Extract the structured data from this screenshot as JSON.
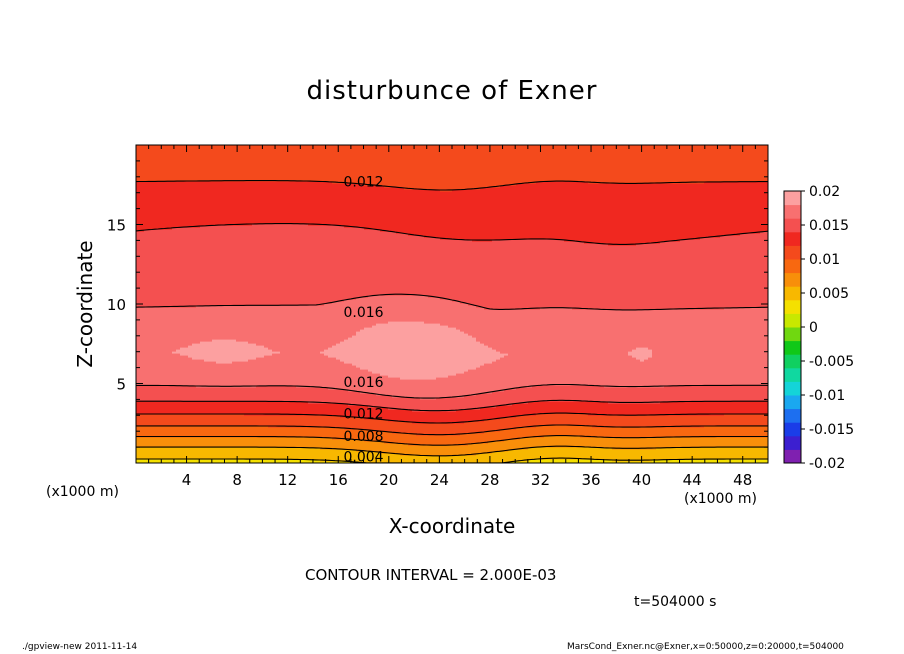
{
  "chart_data": {
    "type": "contour",
    "title": "disturbunce of Exner",
    "xlabel": "X-coordinate",
    "ylabel": "Z-coordinate",
    "x_unit_label": "(x1000 m)",
    "xlim": [
      0,
      50
    ],
    "ylim": [
      0,
      20
    ],
    "x_ticks": [
      4,
      8,
      12,
      16,
      20,
      24,
      28,
      32,
      36,
      40,
      44,
      48
    ],
    "y_ticks": [
      5,
      10,
      15
    ],
    "contour_interval_text": "CONTOUR INTERVAL = 2.000E-03",
    "time_label": "t=504000 s",
    "contour_labels": [
      {
        "text": "0.012",
        "x": 18,
        "z": 17.7
      },
      {
        "text": "0.016",
        "x": 18,
        "z": 9.5
      },
      {
        "text": "0.016",
        "x": 18,
        "z": 5.1
      },
      {
        "text": "0.012",
        "x": 18,
        "z": 3.1
      },
      {
        "text": "0.008",
        "x": 18,
        "z": 1.7
      },
      {
        "text": "0.004",
        "x": 18,
        "z": 0.4
      }
    ],
    "colorbar": {
      "range": [
        -0.02,
        0.02
      ],
      "tick_labels": [
        "0.02",
        "0.015",
        "0.01",
        "0.005",
        "0",
        "-0.005",
        "-0.01",
        "-0.015",
        "-0.02"
      ],
      "colors": [
        "#7f20b0",
        "#3c1fd0",
        "#1a3de8",
        "#1d6ff0",
        "#1aa8f0",
        "#14d4d8",
        "#10d8a0",
        "#10d060",
        "#10c818",
        "#70d810",
        "#c8e800",
        "#f4e000",
        "#f8b800",
        "#f88f0a",
        "#f86810",
        "#f44a1c",
        "#f02820",
        "#f45050",
        "#f87070",
        "#fca0a0"
      ],
      "colors_top_index": 19
    },
    "vertical_profile": [
      {
        "z": 0,
        "value": 0.0035
      },
      {
        "z": 0.5,
        "value": 0.0045
      },
      {
        "z": 1.0,
        "value": 0.006
      },
      {
        "z": 1.5,
        "value": 0.0075
      },
      {
        "z": 2.0,
        "value": 0.009
      },
      {
        "z": 2.5,
        "value": 0.0105
      },
      {
        "z": 3.0,
        "value": 0.0118
      },
      {
        "z": 3.5,
        "value": 0.013
      },
      {
        "z": 4.0,
        "value": 0.0143
      },
      {
        "z": 4.5,
        "value": 0.0155
      },
      {
        "z": 5.5,
        "value": 0.0168
      },
      {
        "z": 7.0,
        "value": 0.0178
      },
      {
        "z": 9.0,
        "value": 0.0168
      },
      {
        "z": 10.0,
        "value": 0.0158
      },
      {
        "z": 12.0,
        "value": 0.0151
      },
      {
        "z": 14.0,
        "value": 0.0143
      },
      {
        "z": 16.0,
        "value": 0.0133
      },
      {
        "z": 17.7,
        "value": 0.012
      },
      {
        "z": 20.0,
        "value": 0.0112
      }
    ]
  },
  "footer": {
    "left": "./gpview-new   2011-11-14",
    "right": "MarsCond_Exner.nc@Exner,x=0:50000,z=0:20000,t=504000"
  }
}
